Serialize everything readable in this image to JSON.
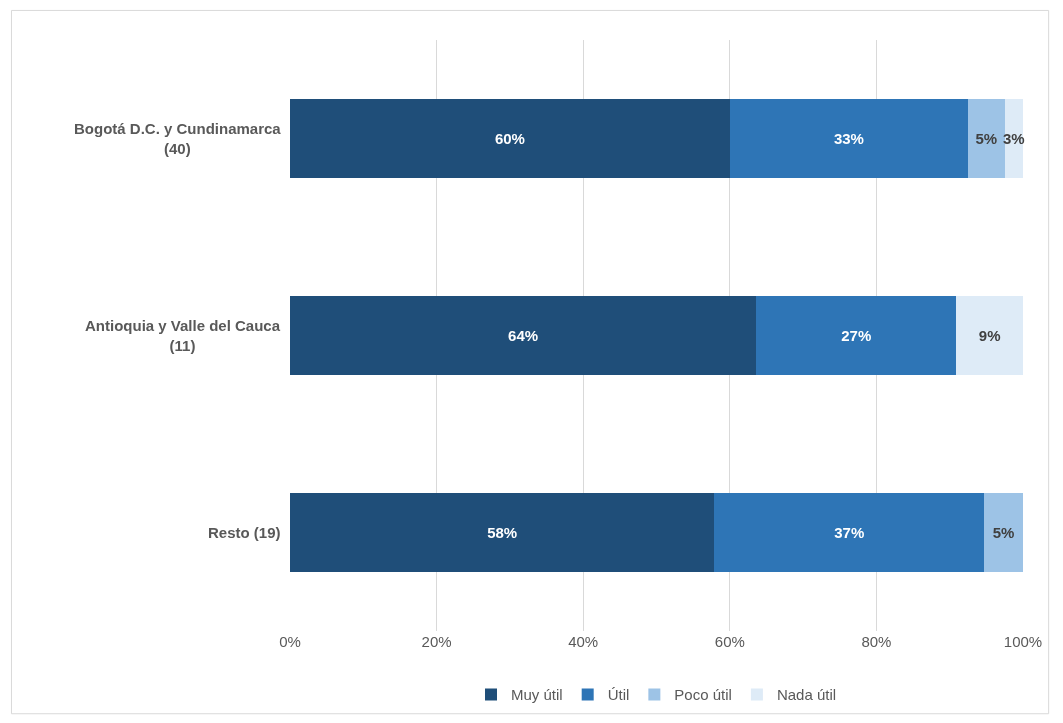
{
  "chart_data": {
    "type": "bar",
    "orientation": "horizontal",
    "stacked": true,
    "categories": [
      "Bogotá D.C. y Cundinamarca\n(40)",
      "Antioquia y Valle del Cauca\n(11)",
      "Resto (19)"
    ],
    "series": [
      {
        "name": "Muy útil",
        "color": "#1f4e79",
        "values": [
          60,
          63.6,
          57.9
        ],
        "value_labels": [
          "60%",
          "64%",
          "58%"
        ]
      },
      {
        "name": "Útil",
        "color": "#2e75b6",
        "values": [
          32.5,
          27.3,
          36.8
        ],
        "value_labels": [
          "33%",
          "27%",
          "37%"
        ]
      },
      {
        "name": "Poco útil",
        "color": "#9dc3e6",
        "values": [
          5,
          null,
          5.3
        ],
        "value_labels": [
          "5%",
          null,
          "5%"
        ]
      },
      {
        "name": "Nada útil",
        "color": "#deebf7",
        "values": [
          2.5,
          9.1,
          null
        ],
        "value_labels": [
          "3%",
          "9%",
          null
        ]
      }
    ],
    "xlim": [
      0,
      100
    ],
    "xticks": [
      {
        "value": 0,
        "label": "0%"
      },
      {
        "value": 20,
        "label": "20%"
      },
      {
        "value": 40,
        "label": "40%"
      },
      {
        "value": 60,
        "label": "60%"
      },
      {
        "value": 80,
        "label": "80%"
      },
      {
        "value": 100,
        "label": "100%"
      }
    ],
    "grid": "x",
    "legend": "bottom"
  }
}
